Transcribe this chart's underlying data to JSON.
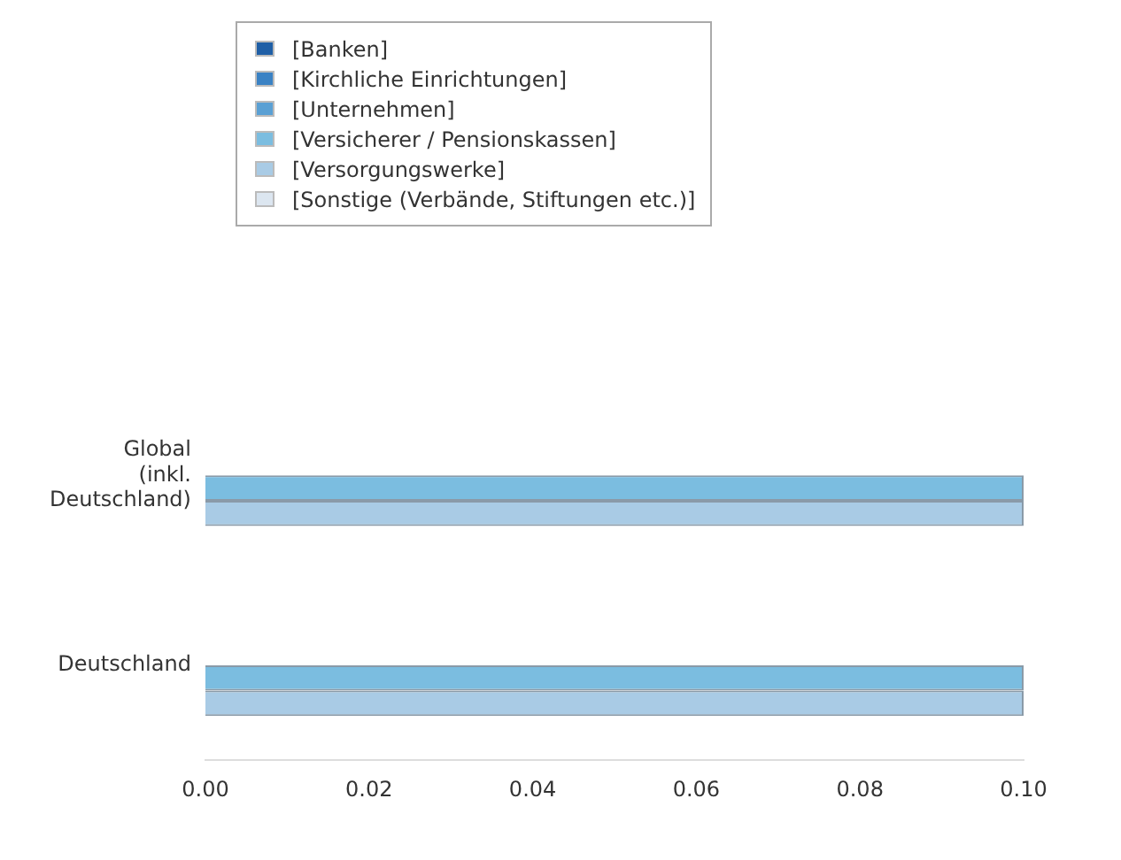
{
  "chart_data": {
    "type": "bar",
    "orientation": "horizontal",
    "categories": [
      "Global (inkl. Deutschland)",
      "Deutschland"
    ],
    "series": [
      {
        "name": "[Banken]",
        "color": "#1f5fa6",
        "values": [
          0,
          0
        ]
      },
      {
        "name": "[Kirchliche Einrichtungen]",
        "color": "#3a82c4",
        "values": [
          0,
          0
        ]
      },
      {
        "name": "[Unternehmen]",
        "color": "#5aa0d4",
        "values": [
          0,
          0
        ]
      },
      {
        "name": "[Versicherer / Pensionskassen]",
        "color": "#7bbde0",
        "values": [
          0.1,
          0.1
        ]
      },
      {
        "name": "[Versorgungswerke]",
        "color": "#a9cbe5",
        "values": [
          0.1,
          0.1
        ]
      },
      {
        "name": "[Sonstige (Verbände, Stiftungen etc.)]",
        "color": "#dce6f0",
        "values": [
          0,
          0
        ]
      }
    ],
    "xlim": [
      0,
      0.1
    ],
    "xticks": [
      {
        "value": 0,
        "label": "0.00"
      },
      {
        "value": 0.02,
        "label": "0.02"
      },
      {
        "value": 0.04,
        "label": "0.04"
      },
      {
        "value": 0.06,
        "label": "0.06"
      },
      {
        "value": 0.08,
        "label": "0.08"
      },
      {
        "value": 0.1,
        "label": "0.10"
      }
    ],
    "grid": false,
    "legend": "top"
  }
}
